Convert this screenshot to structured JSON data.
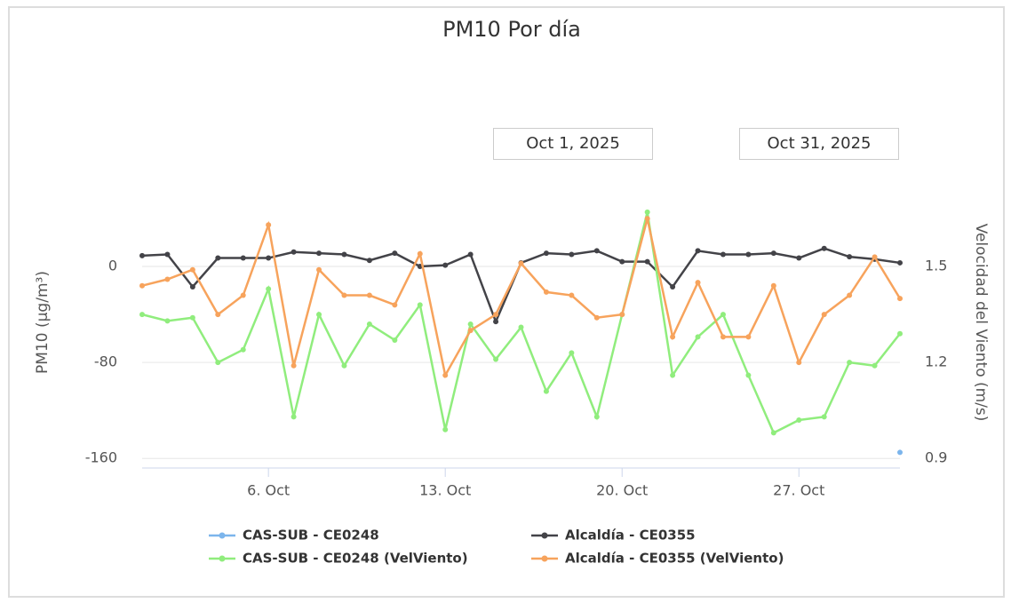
{
  "date_range": {
    "from": "Oct 1, 2025",
    "to": "Oct 31, 2025"
  },
  "chart_data": {
    "type": "line",
    "title": "PM10 Por día",
    "y_label": "PM10 (µg/m³)",
    "y2_label": "Velocidad del Viento (m/s)",
    "x": [
      1,
      2,
      3,
      4,
      5,
      6,
      7,
      8,
      9,
      10,
      11,
      12,
      13,
      14,
      15,
      16,
      17,
      18,
      19,
      20,
      21,
      22,
      23,
      24,
      25,
      26,
      27,
      28,
      29,
      30,
      31
    ],
    "xlim": [
      1,
      31
    ],
    "xticks": [
      {
        "value": 6,
        "label": "6. Oct"
      },
      {
        "value": 13,
        "label": "13. Oct"
      },
      {
        "value": 20,
        "label": "20. Oct"
      },
      {
        "value": 27,
        "label": "27. Oct"
      }
    ],
    "ylim": [
      -168,
      74
    ],
    "yticks": [
      -160,
      -80,
      0
    ],
    "y2lim": [
      0.87,
      1.778
    ],
    "y2ticks": [
      0.9,
      1.2,
      1.5
    ],
    "grid": true,
    "legend": "bottom",
    "series": [
      {
        "name": "CAS-SUB - CE0248",
        "color": "#7cb5ec",
        "values": [
          null,
          null,
          null,
          null,
          null,
          null,
          null,
          null,
          null,
          null,
          null,
          null,
          null,
          null,
          null,
          null,
          null,
          null,
          null,
          null,
          null,
          null,
          null,
          null,
          null,
          null,
          null,
          null,
          null,
          null,
          -155
        ]
      },
      {
        "name": "Alcaldía - CE0355",
        "color": "#434348",
        "values": [
          9,
          10,
          -17,
          7,
          7,
          7,
          12,
          11,
          10,
          5,
          11,
          0,
          1,
          10,
          -46,
          3,
          11,
          10,
          13,
          4,
          4,
          -17,
          13,
          10,
          10,
          11,
          7,
          15,
          8,
          6,
          3
        ]
      },
      {
        "name": "CAS-SUB - CE0248 (VelViento)",
        "color": "#90ed7d",
        "axis": "y2",
        "values": [
          1.35,
          1.33,
          1.34,
          1.2,
          1.24,
          1.43,
          1.03,
          1.35,
          1.19,
          1.32,
          1.27,
          1.38,
          0.99,
          1.32,
          1.21,
          1.31,
          1.11,
          1.23,
          1.03,
          1.35,
          1.67,
          1.16,
          1.28,
          1.35,
          1.16,
          0.98,
          1.02,
          1.03,
          1.2,
          1.19,
          1.29
        ]
      },
      {
        "name": "Alcaldía - CE0355 (VelViento)",
        "color": "#f7a35c",
        "axis": "y2",
        "values": [
          1.44,
          1.46,
          1.49,
          1.35,
          1.41,
          1.63,
          1.19,
          1.49,
          1.41,
          1.41,
          1.38,
          1.54,
          1.16,
          1.3,
          1.35,
          1.51,
          1.42,
          1.41,
          1.34,
          1.35,
          1.65,
          1.28,
          1.45,
          1.28,
          1.28,
          1.44,
          1.2,
          1.35,
          1.41,
          1.53,
          1.4
        ]
      }
    ]
  }
}
